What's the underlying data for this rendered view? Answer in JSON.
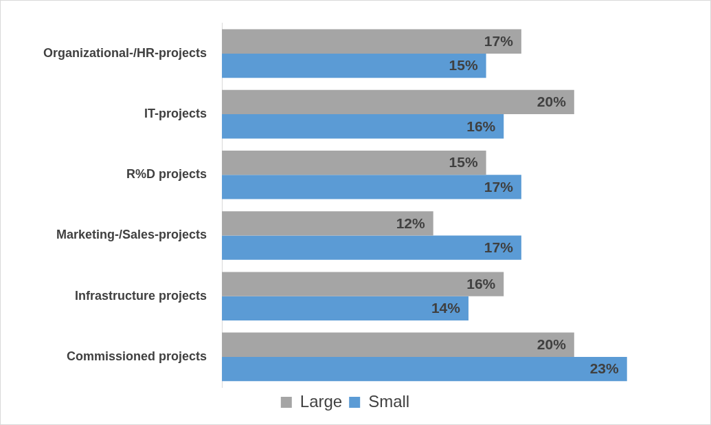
{
  "chart_data": {
    "type": "bar",
    "orientation": "horizontal",
    "categories": [
      "Organizational-/HR-projects",
      "IT-projects",
      "R%D projects",
      "Marketing-/Sales-projects",
      "Infrastructure projects",
      "Commissioned projects"
    ],
    "series": [
      {
        "name": "Large",
        "color": "#a5a5a5",
        "values": [
          17,
          20,
          15,
          12,
          16,
          20
        ],
        "value_labels": [
          "17%",
          "20%",
          "15%",
          "12%",
          "16%",
          "20%"
        ]
      },
      {
        "name": "Small",
        "color": "#5b9bd5",
        "values": [
          15,
          16,
          17,
          17,
          14,
          23
        ],
        "value_labels": [
          "15%",
          "16%",
          "17%",
          "17%",
          "14%",
          "23%"
        ]
      }
    ],
    "tick_labels": "y",
    "legend": "bottom"
  }
}
